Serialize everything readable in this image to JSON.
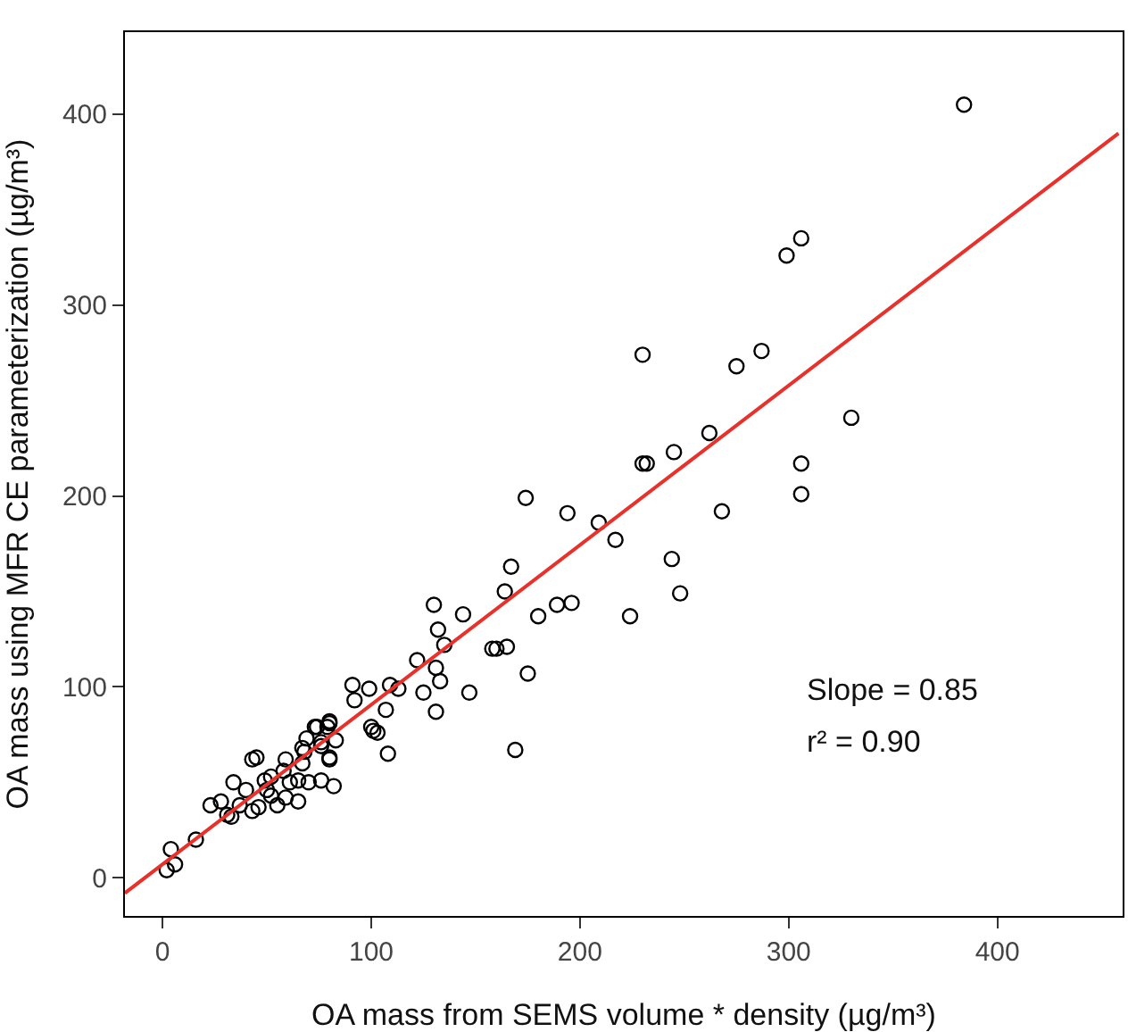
{
  "chart_data": {
    "type": "scatter",
    "xlabel": "OA mass from SEMS volume * density (µg/m³)",
    "ylabel": "OA mass using MFR CE parameterization (µg/m³)",
    "xlim": [
      -18,
      460
    ],
    "ylim": [
      -20,
      443
    ],
    "xticks": [
      0,
      100,
      200,
      300,
      400
    ],
    "yticks": [
      0,
      100,
      200,
      300,
      400
    ],
    "grid": false,
    "marker": "circle",
    "annotations": [
      "Slope = 0.85",
      "r² = 0.90"
    ],
    "series": [
      {
        "color": "#000000",
        "x": [
          384,
          306,
          299,
          230,
          275,
          287,
          262,
          245,
          230,
          232,
          330,
          306,
          306,
          268,
          209,
          217,
          174,
          194,
          244,
          248,
          224,
          167,
          164,
          189,
          196,
          180,
          144,
          130,
          132,
          135,
          158,
          160,
          165,
          175,
          147,
          169,
          122,
          131,
          133,
          125,
          131,
          109,
          113,
          99,
          91,
          92,
          107,
          100,
          101,
          103,
          108,
          80,
          79,
          83,
          80,
          82,
          74,
          76,
          69,
          67,
          76,
          43,
          45,
          59,
          34,
          52,
          4,
          6,
          2,
          16,
          23,
          28,
          33,
          37,
          49,
          40,
          52,
          46,
          58,
          61,
          65,
          68,
          73,
          80,
          76,
          80,
          65,
          55,
          31,
          43,
          50,
          59,
          70,
          67
        ],
        "values": [
          405,
          335,
          326,
          274,
          268,
          276,
          233,
          223,
          217,
          217,
          241,
          217,
          201,
          192,
          186,
          177,
          199,
          191,
          167,
          149,
          137,
          163,
          150,
          143,
          144,
          137,
          138,
          143,
          130,
          122,
          120,
          120,
          121,
          107,
          97,
          67,
          114,
          110,
          103,
          97,
          87,
          101,
          99,
          99,
          101,
          93,
          88,
          79,
          77,
          76,
          65,
          82,
          79,
          72,
          62,
          48,
          79,
          71,
          73,
          68,
          51,
          62,
          63,
          62,
          50,
          53,
          15,
          7,
          4,
          20,
          38,
          40,
          32,
          38,
          51,
          46,
          43,
          37,
          56,
          50,
          51,
          66,
          79,
          81,
          69,
          63,
          40,
          38,
          33,
          35,
          46,
          42,
          50,
          60
        ]
      },
      {
        "type": "line",
        "color": "#e8312a",
        "marker": "none",
        "x": [
          -18,
          458
        ],
        "values": [
          -8,
          390
        ]
      }
    ]
  }
}
